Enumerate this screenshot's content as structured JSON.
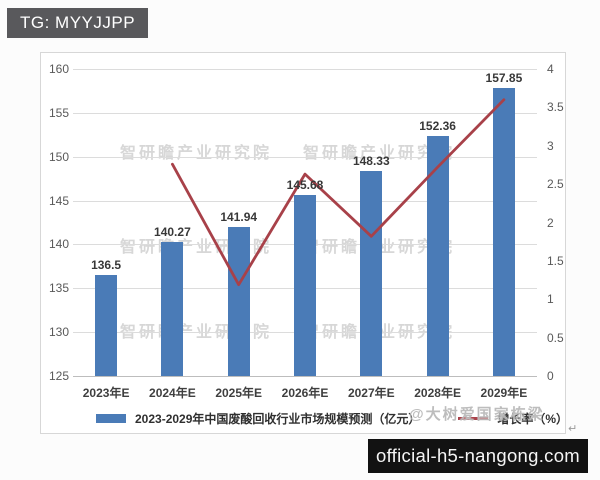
{
  "badges": {
    "top_left": "TG: MYYJJPP",
    "bottom_right": "official-h5-nangong.com"
  },
  "watermarks": {
    "tile_text": "智研瞻产业研究院",
    "overlay_text": "@大树爱国家栋梁",
    "return_mark": "↵"
  },
  "chart_data": {
    "type": "bar",
    "combo": "bar+line",
    "title": "",
    "xlabel": "",
    "ylabel": "",
    "categories": [
      "2023年E",
      "2024年E",
      "2025年E",
      "2026年E",
      "2027年E",
      "2028年E",
      "2029年E"
    ],
    "series": [
      {
        "name": "2023-2029年中国废酸回收行业市场规模预测（亿元）",
        "type": "bar",
        "axis": "left",
        "color": "#4a7bb7",
        "values": [
          136.5,
          140.27,
          141.94,
          145.68,
          148.33,
          152.36,
          157.85
        ]
      },
      {
        "name": "增长率（%）",
        "type": "line",
        "axis": "right",
        "color": "#a84149",
        "values": [
          null,
          2.76,
          1.19,
          2.63,
          1.82,
          2.72,
          3.6
        ]
      }
    ],
    "left_axis": {
      "min": 125,
      "max": 160,
      "ticks": [
        125,
        130,
        135,
        140,
        145,
        150,
        155,
        160
      ]
    },
    "right_axis": {
      "min": 0,
      "max": 4,
      "ticks": [
        0,
        0.5,
        1,
        1.5,
        2,
        2.5,
        3,
        3.5,
        4
      ]
    },
    "grid": true,
    "data_labels": true,
    "legend_position": "bottom"
  }
}
